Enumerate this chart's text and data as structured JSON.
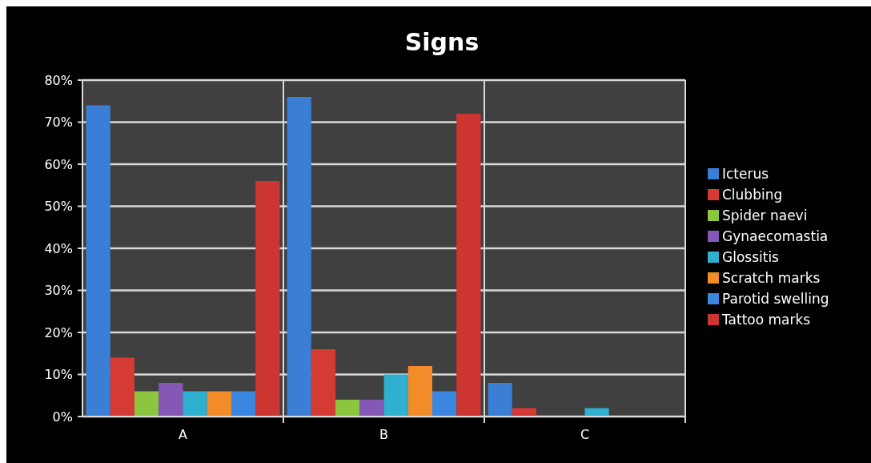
{
  "chart_data": {
    "type": "bar",
    "title": "Signs",
    "categories": [
      "A",
      "B",
      "C"
    ],
    "series": [
      {
        "name": "Icterus",
        "color": "#3a7fd5",
        "values": [
          74,
          76,
          8
        ]
      },
      {
        "name": "Clubbing",
        "color": "#d63a35",
        "values": [
          14,
          16,
          2
        ]
      },
      {
        "name": "Spider naevi",
        "color": "#8cc63f",
        "values": [
          6,
          4,
          0
        ]
      },
      {
        "name": "Gynaecomastia",
        "color": "#8558b8",
        "values": [
          8,
          4,
          0
        ]
      },
      {
        "name": "Glossitis",
        "color": "#2fb0d0",
        "values": [
          6,
          10,
          2
        ]
      },
      {
        "name": "Scratch marks",
        "color": "#f28c28",
        "values": [
          6,
          12,
          0
        ]
      },
      {
        "name": "Parotid swelling",
        "color": "#3a86e0",
        "values": [
          6,
          6,
          0
        ]
      },
      {
        "name": "Tattoo marks",
        "color": "#cc3530",
        "values": [
          56,
          72,
          0
        ]
      }
    ],
    "ylim": [
      0,
      80
    ],
    "yticks": [
      {
        "value": 0,
        "label": "0%"
      },
      {
        "value": 10,
        "label": "10%"
      },
      {
        "value": 20,
        "label": "20%"
      },
      {
        "value": 30,
        "label": "30%"
      },
      {
        "value": 40,
        "label": "40%"
      },
      {
        "value": 50,
        "label": "50%"
      },
      {
        "value": 60,
        "label": "60%"
      },
      {
        "value": 70,
        "label": "70%"
      },
      {
        "value": 80,
        "label": "80%"
      }
    ],
    "grid": "y",
    "legend": "right"
  }
}
